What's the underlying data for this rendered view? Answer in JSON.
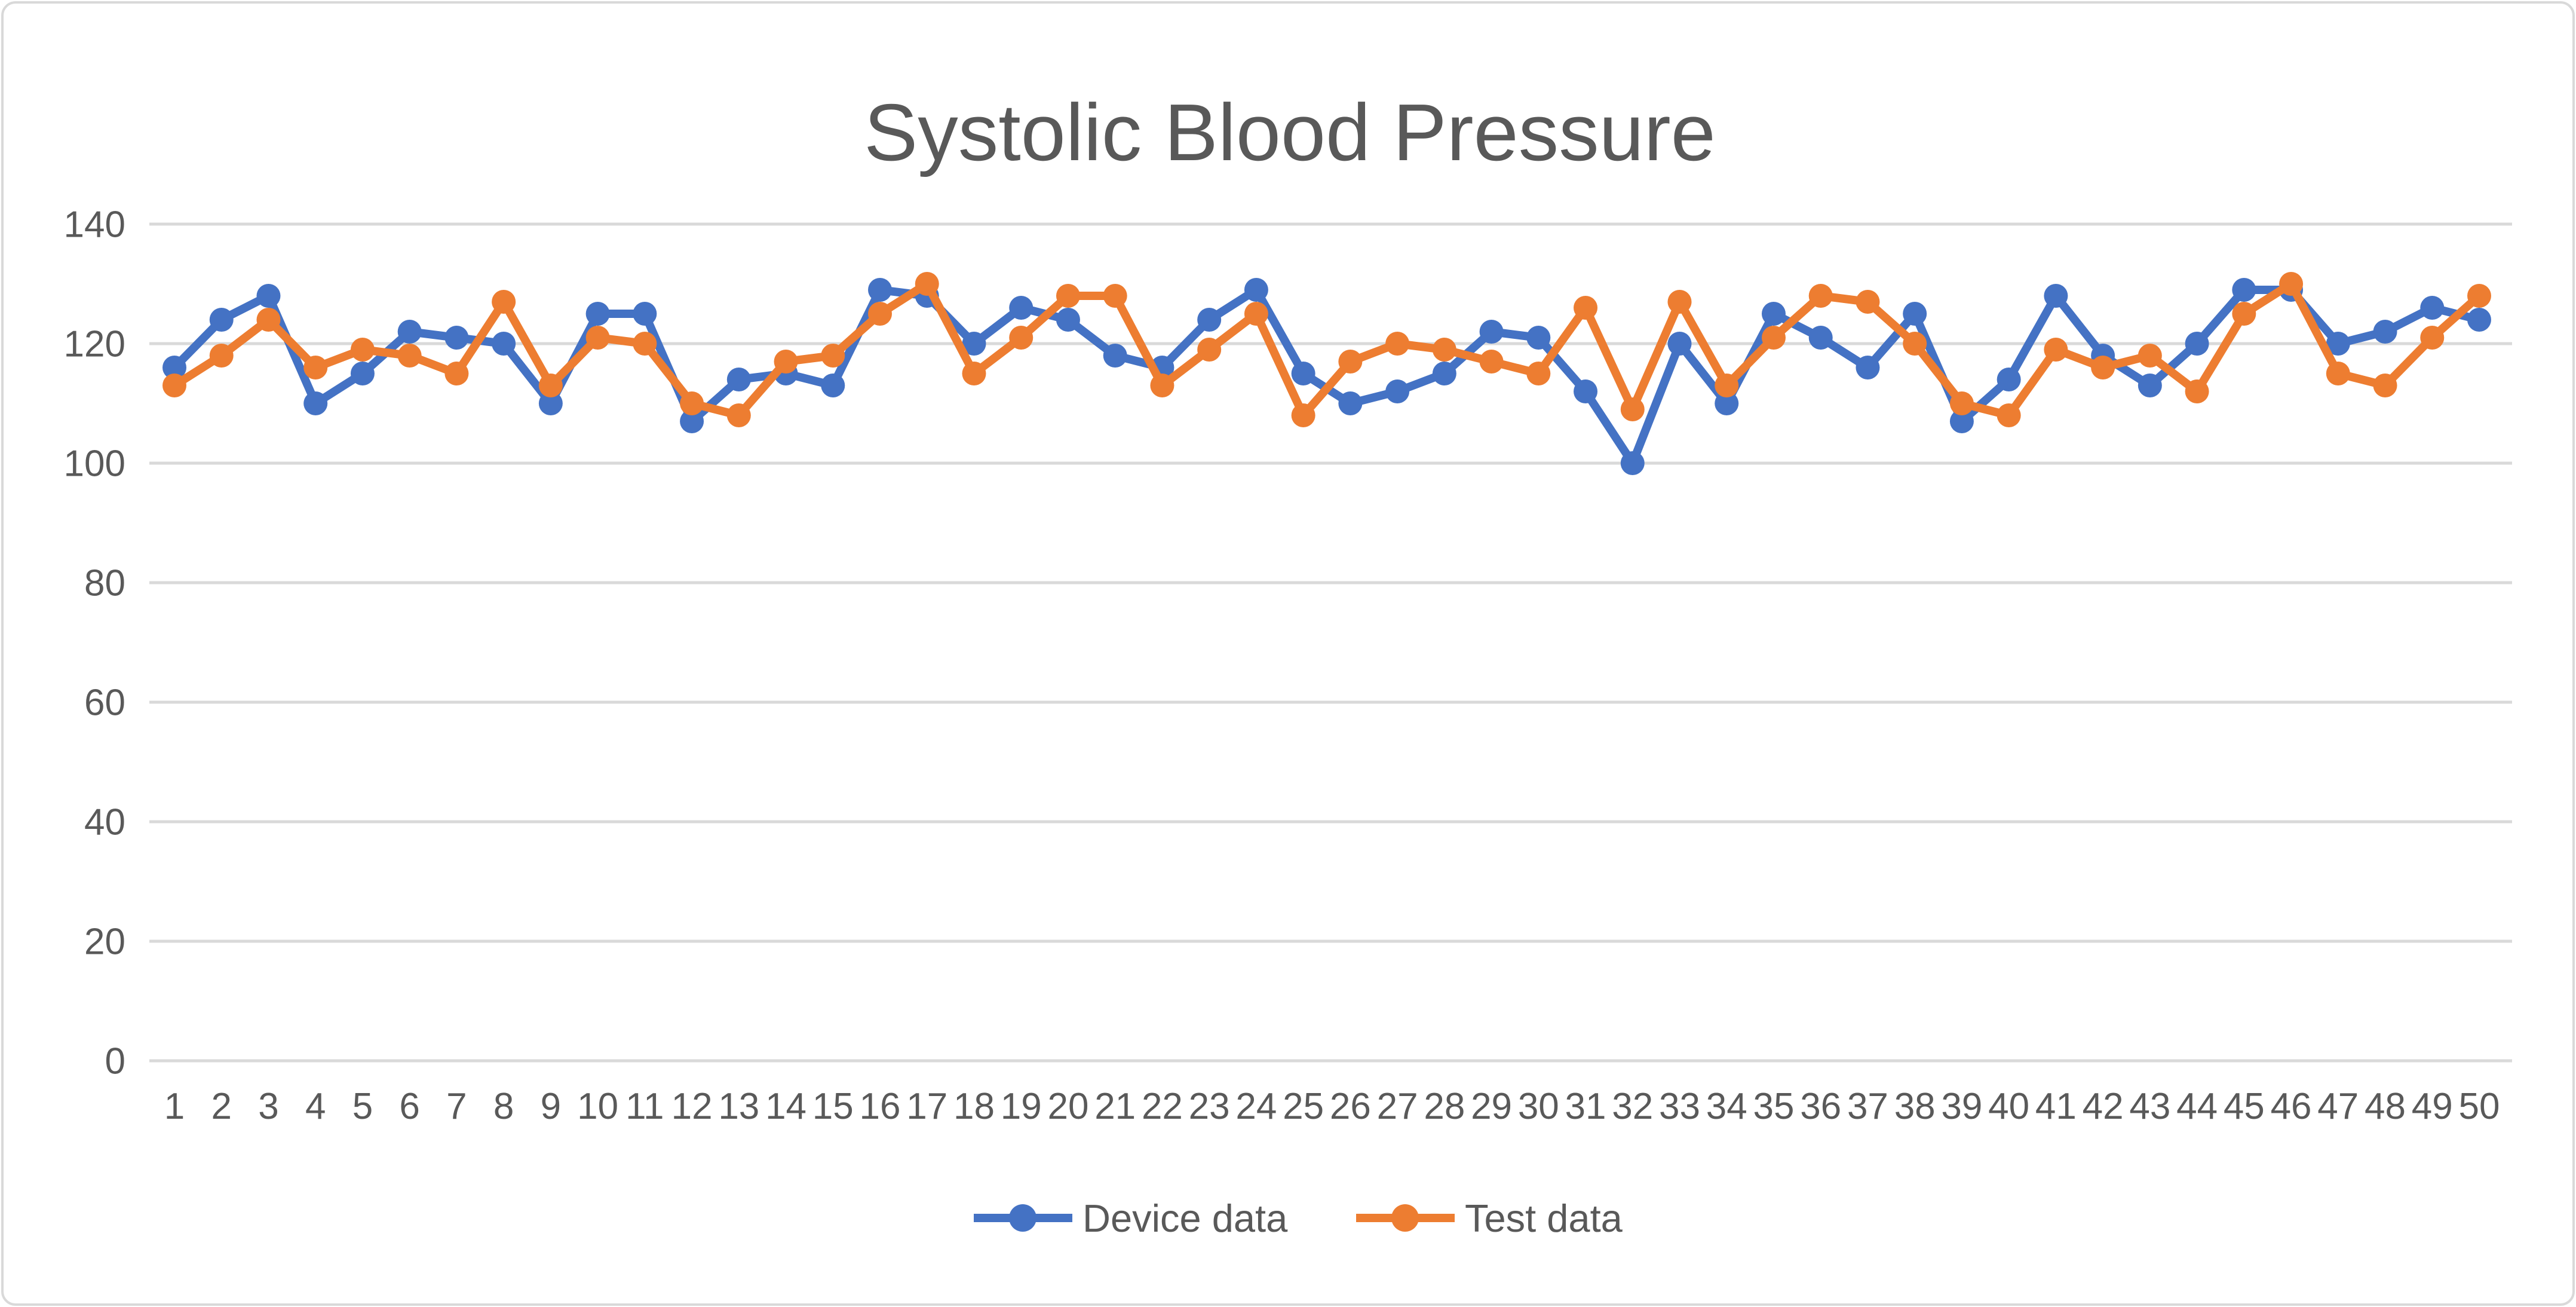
{
  "chart_data": {
    "type": "line",
    "title": "Systolic Blood Pressure",
    "categories": [
      "1",
      "2",
      "3",
      "4",
      "5",
      "6",
      "7",
      "8",
      "9",
      "10",
      "11",
      "12",
      "13",
      "14",
      "15",
      "16",
      "17",
      "18",
      "19",
      "20",
      "21",
      "22",
      "23",
      "24",
      "25",
      "26",
      "27",
      "28",
      "29",
      "30",
      "31",
      "32",
      "33",
      "34",
      "35",
      "36",
      "37",
      "38",
      "39",
      "40",
      "41",
      "42",
      "43",
      "44",
      "45",
      "46",
      "47",
      "48",
      "49",
      "50"
    ],
    "series": [
      {
        "name": "Device data",
        "color": "#4472C4",
        "values": [
          116,
          124,
          128,
          110,
          115,
          122,
          121,
          120,
          110,
          125,
          125,
          107,
          114,
          115,
          113,
          129,
          128,
          120,
          126,
          124,
          118,
          116,
          124,
          129,
          115,
          110,
          112,
          115,
          122,
          121,
          112,
          100,
          120,
          110,
          125,
          121,
          116,
          125,
          107,
          114,
          128,
          118,
          113,
          120,
          129,
          129,
          120,
          122,
          126,
          124
        ]
      },
      {
        "name": "Test data",
        "color": "#ED7D31",
        "values": [
          113,
          118,
          124,
          116,
          119,
          118,
          115,
          127,
          113,
          121,
          120,
          110,
          108,
          117,
          118,
          125,
          130,
          115,
          121,
          128,
          128,
          113,
          119,
          125,
          108,
          117,
          120,
          119,
          117,
          115,
          126,
          109,
          127,
          113,
          121,
          128,
          127,
          120,
          110,
          108,
          119,
          116,
          118,
          112,
          125,
          130,
          115,
          113,
          121,
          128
        ]
      }
    ],
    "xlabel": "",
    "ylabel": "",
    "ylim": [
      0,
      140
    ],
    "yticks": [
      0,
      20,
      40,
      60,
      80,
      100,
      120,
      140
    ],
    "grid": "horizontal-on",
    "legend_position": "bottom-center",
    "gridline_color": "#D9D9D9",
    "text_color": "#595959",
    "background_color": "#FFFFFF",
    "marker_style": "circle"
  }
}
